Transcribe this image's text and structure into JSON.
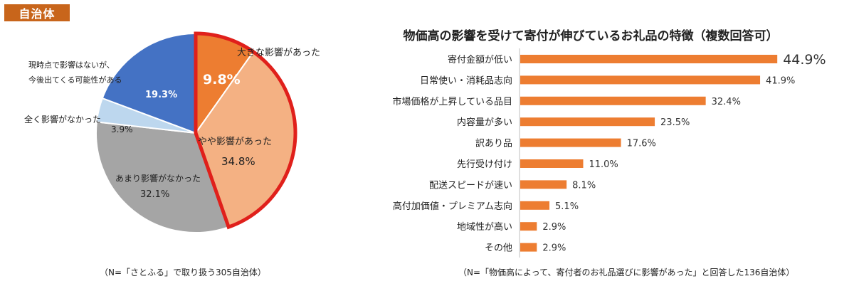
{
  "header": {
    "tag_label": "自治体"
  },
  "chart_data": [
    {
      "type": "pie",
      "title": "",
      "colors": {
        "accent_border": "#e0201b"
      },
      "slices": [
        {
          "label": "大きな影響があった",
          "value": 9.8,
          "value_label": "9.8%",
          "color": "#ed7d31",
          "highlight": true
        },
        {
          "label": "やや影響があった",
          "value": 34.8,
          "value_label": "34.8%",
          "color": "#f4b183",
          "highlight": true
        },
        {
          "label": "あまり影響がなかった",
          "value": 32.1,
          "value_label": "32.1%",
          "color": "#a5a5a5",
          "highlight": false
        },
        {
          "label": "全く影響がなかった",
          "value": 3.9,
          "value_label": "3.9%",
          "color": "#bdd7ee",
          "highlight": false
        },
        {
          "label": "現時点で影響はないが、今後出てくる可能性がある",
          "label_lines": [
            "現時点で影響はないが、",
            "今後出てくる可能性がある"
          ],
          "value": 19.3,
          "value_label": "19.3%",
          "color": "#4472c4",
          "highlight": false
        }
      ],
      "note": "（N=「さとふる」で取り扱う305自治体）"
    },
    {
      "type": "bar",
      "orientation": "horizontal",
      "title": "物価高の影響を受けて寄付が伸びているお礼品の特徴（複数回答可）",
      "bar_color": "#ed7d31",
      "categories": [
        "寄付金額が低い",
        "日常使い・消耗品志向",
        "市場価格が上昇している品目",
        "内容量が多い",
        "訳あり品",
        "先行受け付け",
        "配送スピードが速い",
        "高付加価値・プレミアム志向",
        "地域性が高い",
        "その他"
      ],
      "values": [
        44.9,
        41.9,
        32.4,
        23.5,
        17.6,
        11.0,
        8.1,
        5.1,
        2.9,
        2.9
      ],
      "value_labels": [
        "44.9%",
        "41.9%",
        "32.4%",
        "23.5%",
        "17.6%",
        "11.0%",
        "8.1%",
        "5.1%",
        "2.9%",
        "2.9%"
      ],
      "xlim": [
        0,
        45
      ],
      "note": "（N=「物価高によって、寄付者のお礼品選びに影響があった」と回答した136自治体）"
    }
  ]
}
